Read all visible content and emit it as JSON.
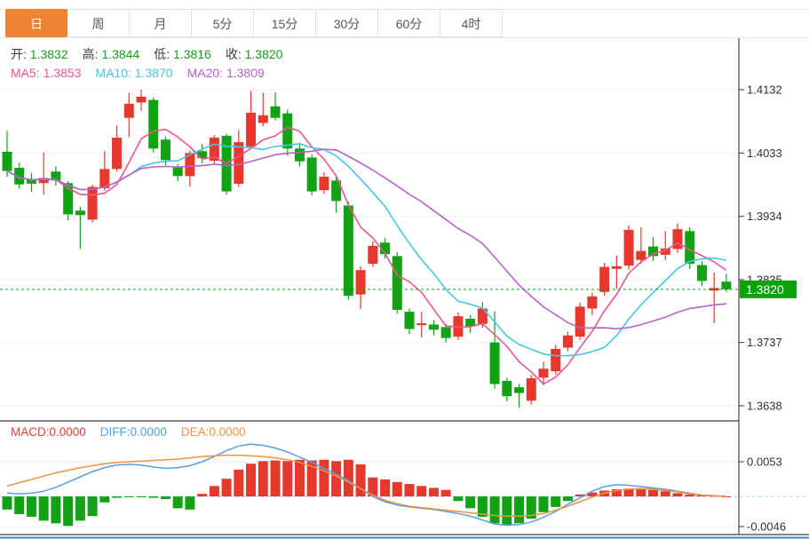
{
  "tabs": {
    "items": [
      "日",
      "周",
      "月",
      "5分",
      "15分",
      "30分",
      "60分",
      "4时"
    ],
    "active_index": 0
  },
  "legend_ohlc": [
    {
      "label": "开:",
      "value": "1.3832"
    },
    {
      "label": "高:",
      "value": "1.3844"
    },
    {
      "label": "低:",
      "value": "1.3816"
    },
    {
      "label": "收:",
      "value": "1.3820"
    }
  ],
  "legend_ma": [
    {
      "label": "MA5:",
      "value": "1.3853"
    },
    {
      "label": "MA10:",
      "value": "1.3870"
    },
    {
      "label": "MA20:",
      "value": "1.3809"
    }
  ],
  "legend_macd": [
    {
      "label": "MACD:",
      "value": "0.0000"
    },
    {
      "label": "DIFF:",
      "value": "0.0000"
    },
    {
      "label": "DEA:",
      "value": "0.0000"
    }
  ],
  "price_badge": "1.3820",
  "colors": {
    "up": "#e7382e",
    "down": "#11a314",
    "ma5": "#f0558f",
    "ma10": "#47c6e3",
    "ma20": "#bb60ce",
    "diff": "#54a0e8",
    "dea": "#f0923e",
    "macd_text": "#e2403a",
    "grid": "#e9eef5",
    "zero_line": "#aed6f2",
    "price_line": "#0b9e19",
    "badge": "#09a309",
    "value_green": "#0fa315",
    "tab_active": "#ef8435",
    "bottom_bar": "#4d7fc0",
    "axis_text": "#333333"
  },
  "chart_data": [
    {
      "type": "candlestick",
      "title": "day-candles-with-moving-averages",
      "y_ticks": [
        1.4132,
        1.4033,
        1.3934,
        1.3835,
        1.3737,
        1.3638
      ],
      "y_tick_labels": [
        "1.4132",
        "1.4033",
        "1.3934",
        "1.3835",
        "1.3737",
        "1.3638"
      ],
      "price_line": 1.382,
      "ma_periods": [
        5,
        10,
        20
      ],
      "ma_values_shown": {
        "MA5": 1.3853,
        "MA10": 1.387,
        "MA20": 1.3809
      },
      "last_ohlc": {
        "open": 1.3832,
        "high": 1.3844,
        "low": 1.3816,
        "close": 1.382
      },
      "candles": [
        [
          1.4035,
          1.4005,
          1.3996,
          1.4068
        ],
        [
          1.401,
          1.3984,
          1.3977,
          1.4018
        ],
        [
          1.3992,
          1.3985,
          1.3972,
          1.4002
        ],
        [
          1.3986,
          1.3994,
          1.3968,
          1.4034
        ],
        [
          1.4004,
          1.399,
          1.3982,
          1.4012
        ],
        [
          1.3986,
          1.3937,
          1.3928,
          1.3989
        ],
        [
          1.3943,
          1.3936,
          1.3883,
          1.3949
        ],
        [
          1.3929,
          1.398,
          1.3924,
          1.3984
        ],
        [
          1.3978,
          1.4008,
          1.3974,
          1.4036
        ],
        [
          1.4008,
          1.4057,
          1.4004,
          1.4076
        ],
        [
          1.4088,
          1.411,
          1.4058,
          1.4127
        ],
        [
          1.4112,
          1.4121,
          1.4099,
          1.4132
        ],
        [
          1.4116,
          1.404,
          1.4034,
          1.412
        ],
        [
          1.4054,
          1.4022,
          1.4014,
          1.4059
        ],
        [
          1.4012,
          1.3997,
          1.3989,
          1.4016
        ],
        [
          1.3997,
          1.4033,
          1.398,
          1.4037
        ],
        [
          1.4036,
          1.4025,
          1.4017,
          1.4047
        ],
        [
          1.4021,
          1.4057,
          1.4017,
          1.4061
        ],
        [
          1.406,
          1.3973,
          1.3968,
          1.4063
        ],
        [
          1.3985,
          1.405,
          1.398,
          1.4069
        ],
        [
          1.4043,
          1.4096,
          1.4039,
          1.413
        ],
        [
          1.408,
          1.4092,
          1.4075,
          1.4127
        ],
        [
          1.4106,
          1.4088,
          1.4084,
          1.4128
        ],
        [
          1.4095,
          1.404,
          1.4029,
          1.4101
        ],
        [
          1.404,
          1.402,
          1.4012,
          1.4049
        ],
        [
          1.4026,
          1.3973,
          1.3967,
          1.4031
        ],
        [
          1.3975,
          1.3996,
          1.3969,
          1.4003
        ],
        [
          1.399,
          1.3958,
          1.394,
          1.3996
        ],
        [
          1.3951,
          1.381,
          1.3804,
          1.3957
        ],
        [
          1.3812,
          1.385,
          1.3789,
          1.3856
        ],
        [
          1.386,
          1.3888,
          1.3855,
          1.3895
        ],
        [
          1.3893,
          1.3875,
          1.3868,
          1.39
        ],
        [
          1.3872,
          1.3788,
          1.3782,
          1.3878
        ],
        [
          1.3785,
          1.3758,
          1.375,
          1.379
        ],
        [
          1.3764,
          1.3767,
          1.3745,
          1.3785
        ],
        [
          1.3765,
          1.3757,
          1.3748,
          1.3772
        ],
        [
          1.3761,
          1.3744,
          1.3737,
          1.3766
        ],
        [
          1.3746,
          1.3778,
          1.3741,
          1.3784
        ],
        [
          1.3774,
          1.3762,
          1.3752,
          1.378
        ],
        [
          1.3766,
          1.379,
          1.376,
          1.38
        ],
        [
          1.3737,
          1.3672,
          1.3665,
          1.3786
        ],
        [
          1.3677,
          1.3653,
          1.3645,
          1.3682
        ],
        [
          1.3667,
          1.3658,
          1.3635,
          1.3672
        ],
        [
          1.3646,
          1.3681,
          1.364,
          1.3686
        ],
        [
          1.3682,
          1.3696,
          1.367,
          1.3707
        ],
        [
          1.3692,
          1.3727,
          1.3687,
          1.3733
        ],
        [
          1.3729,
          1.3748,
          1.3723,
          1.3754
        ],
        [
          1.3746,
          1.3793,
          1.3741,
          1.3799
        ],
        [
          1.379,
          1.3809,
          1.378,
          1.3815
        ],
        [
          1.3816,
          1.3855,
          1.381,
          1.3861
        ],
        [
          1.3852,
          1.3856,
          1.3821,
          1.3873
        ],
        [
          1.3857,
          1.3913,
          1.3851,
          1.392
        ],
        [
          1.3866,
          1.388,
          1.386,
          1.3917
        ],
        [
          1.3887,
          1.3872,
          1.3864,
          1.3902
        ],
        [
          1.3874,
          1.3884,
          1.3866,
          1.3911
        ],
        [
          1.3883,
          1.3914,
          1.3877,
          1.3923
        ],
        [
          1.3911,
          1.386,
          1.3852,
          1.3917
        ],
        [
          1.3858,
          1.3833,
          1.3825,
          1.3864
        ],
        [
          1.3818,
          1.3822,
          1.3767,
          1.3846
        ],
        [
          1.3832,
          1.382,
          1.3816,
          1.3844
        ]
      ]
    },
    {
      "type": "bar",
      "title": "macd-panel",
      "y_ticks": [
        0.0053,
        -0.0046
      ],
      "y_tick_labels": [
        "0.0053",
        "-0.0046"
      ],
      "zero": 0.0,
      "hist": [
        -0.002,
        -0.0027,
        -0.0031,
        -0.0037,
        -0.0041,
        -0.0045,
        -0.0037,
        -0.003,
        -0.0009,
        -0.0002,
        -0.0001,
        -0.0001,
        -0.0002,
        -0.0004,
        -0.0018,
        -0.002,
        0.0004,
        0.0016,
        0.0027,
        0.0041,
        0.005,
        0.0054,
        0.0055,
        0.0054,
        0.0056,
        0.0055,
        0.0056,
        0.0054,
        0.0056,
        0.0049,
        0.0029,
        0.0026,
        0.0022,
        0.0019,
        0.0016,
        0.0013,
        0.001,
        -0.0007,
        -0.0018,
        -0.0031,
        -0.0041,
        -0.0043,
        -0.0041,
        -0.0034,
        -0.0024,
        -0.0016,
        -0.0007,
        0.0003,
        0.0006,
        0.0009,
        0.0011,
        0.0012,
        0.0012,
        0.001,
        0.0008,
        0.0005,
        0.0003,
        0.0002,
        0.0001,
        0.0
      ],
      "diff": [
        0.0005,
        0.0004,
        0.0005,
        0.0008,
        0.0014,
        0.0022,
        0.003,
        0.0038,
        0.0044,
        0.0048,
        0.0049,
        0.0048,
        0.0045,
        0.0043,
        0.0044,
        0.0047,
        0.0053,
        0.0061,
        0.007,
        0.0077,
        0.008,
        0.0078,
        0.0074,
        0.0068,
        0.006,
        0.0052,
        0.0043,
        0.0034,
        0.0024,
        0.0012,
        0.0,
        -0.0008,
        -0.0013,
        -0.0016,
        -0.0018,
        -0.002,
        -0.0023,
        -0.0026,
        -0.003,
        -0.0036,
        -0.0042,
        -0.0044,
        -0.0043,
        -0.0039,
        -0.0032,
        -0.0023,
        -0.0012,
        -0.0002,
        0.0008,
        0.0015,
        0.0018,
        0.0017,
        0.0015,
        0.0013,
        0.0011,
        0.0008,
        0.0005,
        0.0002,
        0.0001,
        0.0
      ],
      "dea": [
        0.0016,
        0.0021,
        0.0026,
        0.0031,
        0.0036,
        0.004,
        0.0044,
        0.0047,
        0.005,
        0.0052,
        0.0053,
        0.0054,
        0.0055,
        0.0056,
        0.0057,
        0.0059,
        0.0061,
        0.0062,
        0.0063,
        0.0063,
        0.0062,
        0.0061,
        0.0059,
        0.0056,
        0.0052,
        0.0046,
        0.0039,
        0.0031,
        0.0022,
        0.0012,
        0.0002,
        -0.0006,
        -0.0011,
        -0.0015,
        -0.0017,
        -0.0019,
        -0.0021,
        -0.0023,
        -0.0025,
        -0.0027,
        -0.0029,
        -0.003,
        -0.003,
        -0.0029,
        -0.0026,
        -0.0021,
        -0.0015,
        -0.0008,
        -0.0001,
        0.0005,
        0.0009,
        0.0011,
        0.0012,
        0.0011,
        0.0009,
        0.0007,
        0.0004,
        0.0002,
        0.0001,
        0.0
      ]
    }
  ]
}
